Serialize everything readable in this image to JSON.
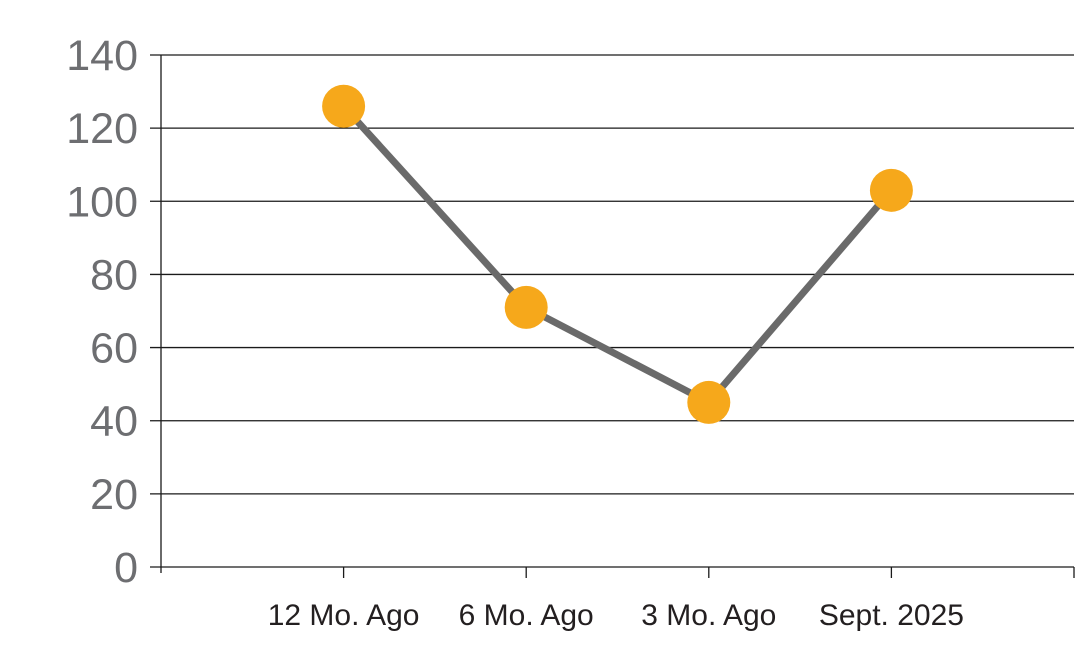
{
  "chart_data": {
    "type": "line",
    "title": "",
    "xlabel": "",
    "ylabel": "",
    "categories": [
      "12 Mo. Ago",
      "6 Mo. Ago",
      "3 Mo. Ago",
      "Sept. 2025"
    ],
    "values": [
      126,
      71,
      45,
      103
    ],
    "ylim": [
      0,
      140
    ],
    "yticks": [
      0,
      20,
      40,
      60,
      80,
      100,
      120,
      140
    ],
    "ytick_step": 20,
    "grid": true,
    "legend": false,
    "marker_shape": "circle",
    "colors": {
      "marker": "#F6A81B",
      "line": "#6A6A6A",
      "grid": "#1A1A1A",
      "y_axis_text": "#6D6E71",
      "x_axis_text": "#231F20",
      "background": "#FFFFFF"
    }
  }
}
